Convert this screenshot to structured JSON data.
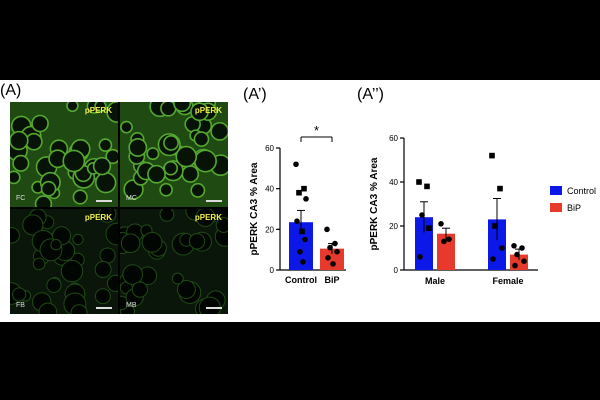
{
  "panels": {
    "a_label": "(A)",
    "a1_label": "(A’)",
    "a2_label": "(A’’)"
  },
  "micrographs": [
    {
      "label": "pPERK",
      "corner": "FC",
      "brightness": "high"
    },
    {
      "label": "pPERK",
      "corner": "MC",
      "brightness": "high"
    },
    {
      "label": "pPERK",
      "corner": "FB",
      "brightness": "low"
    },
    {
      "label": "pPERK",
      "corner": "MB",
      "brightness": "low"
    }
  ],
  "colors": {
    "control": "#0b18e8",
    "bip": "#e83a2c"
  },
  "chart_data": [
    {
      "type": "bar",
      "ylabel": "pPERK CA3 % Area",
      "ylim": [
        0,
        60
      ],
      "yticks": [
        0,
        20,
        40,
        60
      ],
      "categories": [
        "Control",
        "BiP"
      ],
      "values": [
        23.5,
        10.5
      ],
      "errors": [
        5.8,
        2.5
      ],
      "significance": "*",
      "points": [
        {
          "category": "Control",
          "value": 52,
          "marker": "circle"
        },
        {
          "category": "Control",
          "value": 40,
          "marker": "square"
        },
        {
          "category": "Control",
          "value": 38,
          "marker": "square"
        },
        {
          "category": "Control",
          "value": 35,
          "marker": "circle"
        },
        {
          "category": "Control",
          "value": 24,
          "marker": "circle"
        },
        {
          "category": "Control",
          "value": 19,
          "marker": "square"
        },
        {
          "category": "Control",
          "value": 15,
          "marker": "circle"
        },
        {
          "category": "Control",
          "value": 9,
          "marker": "circle"
        },
        {
          "category": "Control",
          "value": 4,
          "marker": "circle"
        },
        {
          "category": "BiP",
          "value": 20,
          "marker": "circle"
        },
        {
          "category": "BiP",
          "value": 13,
          "marker": "circle"
        },
        {
          "category": "BiP",
          "value": 11,
          "marker": "circle"
        },
        {
          "category": "BiP",
          "value": 9,
          "marker": "circle"
        },
        {
          "category": "BiP",
          "value": 6,
          "marker": "circle"
        },
        {
          "category": "BiP",
          "value": 3,
          "marker": "circle"
        }
      ]
    },
    {
      "type": "bar",
      "ylabel": "pPERK CA3 % Area",
      "ylim": [
        0,
        60
      ],
      "yticks": [
        0,
        20,
        40,
        60
      ],
      "categories": [
        "Male",
        "Female"
      ],
      "series": [
        {
          "name": "Control",
          "values": [
            24,
            23
          ],
          "errors": [
            7,
            9.5
          ]
        },
        {
          "name": "BiP",
          "values": [
            16.5,
            7
          ],
          "errors": [
            2.5,
            2.5
          ]
        }
      ],
      "legend": "right",
      "points": [
        {
          "category": "Male",
          "series": "Control",
          "value": 40,
          "marker": "square"
        },
        {
          "category": "Male",
          "series": "Control",
          "value": 38,
          "marker": "square"
        },
        {
          "category": "Male",
          "series": "Control",
          "value": 25,
          "marker": "circle"
        },
        {
          "category": "Male",
          "series": "Control",
          "value": 19,
          "marker": "square"
        },
        {
          "category": "Male",
          "series": "Control",
          "value": 6,
          "marker": "circle"
        },
        {
          "category": "Male",
          "series": "BiP",
          "value": 21,
          "marker": "circle"
        },
        {
          "category": "Male",
          "series": "BiP",
          "value": 14,
          "marker": "circle"
        },
        {
          "category": "Male",
          "series": "BiP",
          "value": 13,
          "marker": "circle"
        },
        {
          "category": "Female",
          "series": "Control",
          "value": 52,
          "marker": "square"
        },
        {
          "category": "Female",
          "series": "Control",
          "value": 37,
          "marker": "square"
        },
        {
          "category": "Female",
          "series": "Control",
          "value": 20,
          "marker": "square"
        },
        {
          "category": "Female",
          "series": "Control",
          "value": 10,
          "marker": "circle"
        },
        {
          "category": "Female",
          "series": "Control",
          "value": 5,
          "marker": "circle"
        },
        {
          "category": "Female",
          "series": "BiP",
          "value": 11,
          "marker": "circle"
        },
        {
          "category": "Female",
          "series": "BiP",
          "value": 10,
          "marker": "circle"
        },
        {
          "category": "Female",
          "series": "BiP",
          "value": 7,
          "marker": "circle"
        },
        {
          "category": "Female",
          "series": "BiP",
          "value": 4,
          "marker": "circle"
        },
        {
          "category": "Female",
          "series": "BiP",
          "value": 2,
          "marker": "circle"
        }
      ]
    }
  ]
}
